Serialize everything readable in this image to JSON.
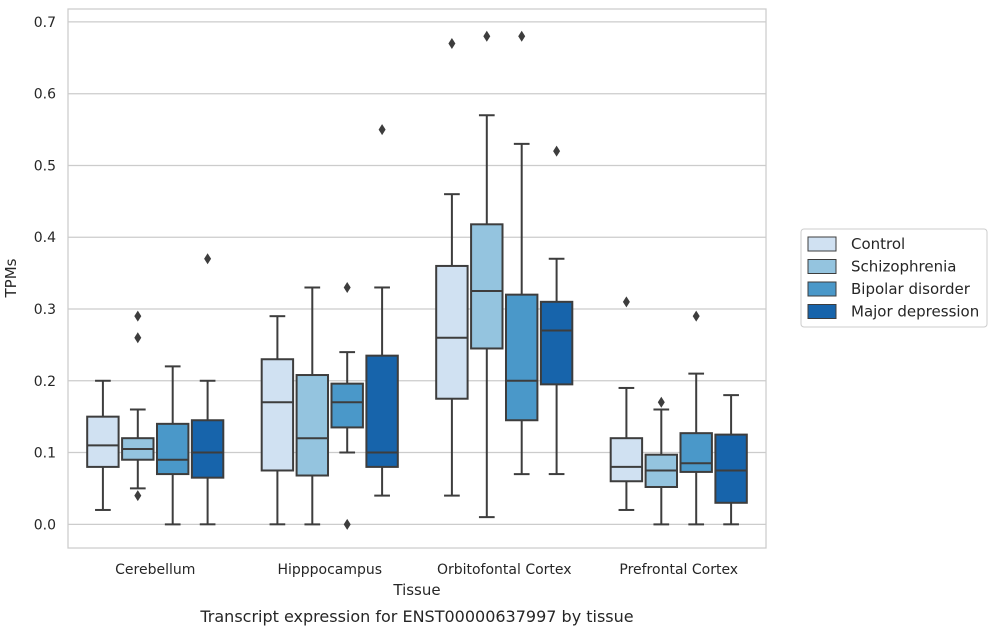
{
  "chart_data": {
    "type": "box",
    "title": "",
    "caption": "Transcript expression for ENST00000637997 by tissue",
    "xlabel": "Tissue",
    "ylabel": "TPMs",
    "ylim": [
      -0.033,
      0.718
    ],
    "yticks": [
      "0.0",
      "0.1",
      "0.2",
      "0.3",
      "0.4",
      "0.5",
      "0.6",
      "0.7"
    ],
    "grid": true,
    "legend_position": "right",
    "categories": [
      "Cerebellum",
      "Hipppocampus",
      "Orbitofontal Cortex",
      "Prefrontal Cortex"
    ],
    "series": [
      {
        "name": "Control",
        "color": "#d0e1f2",
        "boxes": [
          {
            "whislo": 0.02,
            "q1": 0.08,
            "med": 0.11,
            "q3": 0.15,
            "whishi": 0.2,
            "fliers": []
          },
          {
            "whislo": 0.0,
            "q1": 0.075,
            "med": 0.17,
            "q3": 0.23,
            "whishi": 0.29,
            "fliers": []
          },
          {
            "whislo": 0.04,
            "q1": 0.175,
            "med": 0.26,
            "q3": 0.36,
            "whishi": 0.46,
            "fliers": [
              0.67
            ]
          },
          {
            "whislo": 0.02,
            "q1": 0.06,
            "med": 0.08,
            "q3": 0.12,
            "whishi": 0.19,
            "fliers": [
              0.31
            ]
          }
        ]
      },
      {
        "name": "Schizophrenia",
        "color": "#94c4df",
        "boxes": [
          {
            "whislo": 0.05,
            "q1": 0.09,
            "med": 0.105,
            "q3": 0.12,
            "whishi": 0.16,
            "fliers": [
              0.04,
              0.26,
              0.29
            ]
          },
          {
            "whislo": 0.0,
            "q1": 0.068,
            "med": 0.12,
            "q3": 0.208,
            "whishi": 0.33,
            "fliers": []
          },
          {
            "whislo": 0.01,
            "q1": 0.245,
            "med": 0.325,
            "q3": 0.418,
            "whishi": 0.57,
            "fliers": [
              0.68
            ]
          },
          {
            "whislo": 0.0,
            "q1": 0.052,
            "med": 0.075,
            "q3": 0.097,
            "whishi": 0.16,
            "fliers": [
              0.17
            ]
          }
        ]
      },
      {
        "name": "Bipolar disorder",
        "color": "#4a98c9",
        "boxes": [
          {
            "whislo": 0.0,
            "q1": 0.07,
            "med": 0.09,
            "q3": 0.14,
            "whishi": 0.22,
            "fliers": []
          },
          {
            "whislo": 0.1,
            "q1": 0.135,
            "med": 0.17,
            "q3": 0.196,
            "whishi": 0.24,
            "fliers": [
              0.0,
              0.33
            ]
          },
          {
            "whislo": 0.07,
            "q1": 0.145,
            "med": 0.2,
            "q3": 0.32,
            "whishi": 0.53,
            "fliers": [
              0.68
            ]
          },
          {
            "whislo": 0.0,
            "q1": 0.073,
            "med": 0.085,
            "q3": 0.127,
            "whishi": 0.21,
            "fliers": [
              0.29
            ]
          }
        ]
      },
      {
        "name": "Major depression",
        "color": "#1764ab",
        "boxes": [
          {
            "whislo": 0.0,
            "q1": 0.065,
            "med": 0.1,
            "q3": 0.145,
            "whishi": 0.2,
            "fliers": [
              0.37
            ]
          },
          {
            "whislo": 0.04,
            "q1": 0.08,
            "med": 0.1,
            "q3": 0.235,
            "whishi": 0.33,
            "fliers": [
              0.55
            ]
          },
          {
            "whislo": 0.07,
            "q1": 0.195,
            "med": 0.27,
            "q3": 0.31,
            "whishi": 0.37,
            "fliers": [
              0.52
            ]
          },
          {
            "whislo": 0.0,
            "q1": 0.03,
            "med": 0.075,
            "q3": 0.125,
            "whishi": 0.18,
            "fliers": []
          }
        ]
      }
    ]
  }
}
